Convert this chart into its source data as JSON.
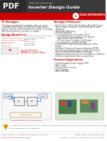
{
  "bg_color": "#ffffff",
  "header_black_color": "#2b2b2b",
  "header_red_color": "#cc0000",
  "pdf_label": "PDF",
  "title_line1": "TIDM-HV-1PH-DCAC",
  "title_line2": "Inverter Design Guide",
  "ti_brand": "TEXAS INSTRUMENTS",
  "section1_title": "TI Designs",
  "section2_title": "Design Features",
  "body_color": "#444444",
  "link_color": "#c00000",
  "footer_color": "#555555",
  "footer_left": "TIDM-HV-1PH-DCAC  November 2016 | Revised April 2017",
  "footer_link": "Texas Instruments Reference Design",
  "footer_right": "Voltage Source Inverter Design Guide",
  "footer_copyright": "Copyright © 2016-2017, Texas Instruments Incorporated"
}
